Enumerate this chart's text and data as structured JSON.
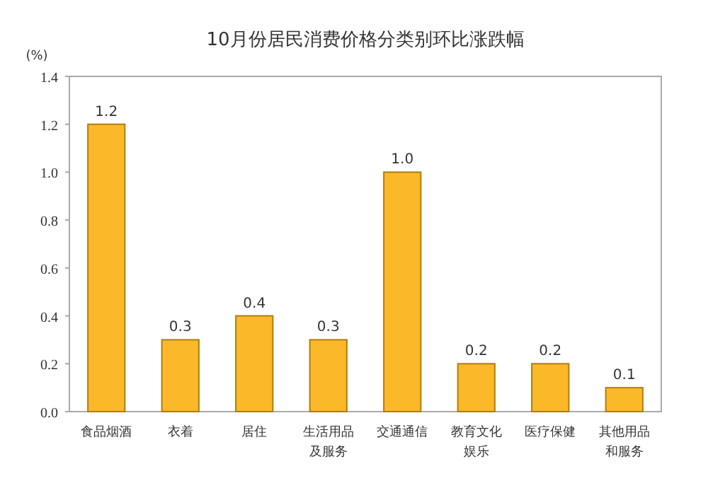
{
  "chart_data": {
    "type": "bar",
    "title": "10月份居民消费价格分类别环比涨跌幅",
    "ylabel": "(%)",
    "categories": [
      "食品烟酒",
      "衣着",
      "居住",
      "生活用品及服务",
      "交通通信",
      "教育文化娱乐",
      "医疗保健",
      "其他用品和服务"
    ],
    "values": [
      1.2,
      0.3,
      0.4,
      0.3,
      1.0,
      0.2,
      0.2,
      0.1
    ],
    "value_labels": [
      "1.2",
      "0.3",
      "0.4",
      "0.3",
      "1.0",
      "0.2",
      "0.2",
      "0.1"
    ],
    "color": "#fbb829",
    "ylim": [
      0,
      1.4
    ],
    "yticks": [
      {
        "value": 0,
        "label": "0.0"
      },
      {
        "value": 0.2,
        "label": "0.2"
      },
      {
        "value": 0.4,
        "label": "0.4"
      },
      {
        "value": 0.6,
        "label": "0.6"
      },
      {
        "value": 0.8,
        "label": "0.8"
      },
      {
        "value": 1.0,
        "label": "1.0"
      },
      {
        "value": 1.2,
        "label": "1.2"
      },
      {
        "value": 1.4,
        "label": "1.4"
      }
    ],
    "grid": false
  }
}
